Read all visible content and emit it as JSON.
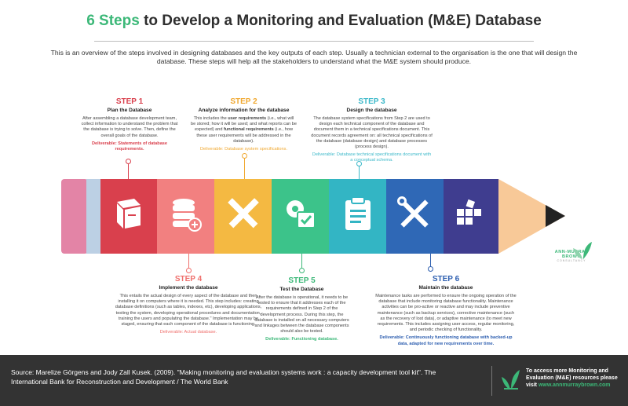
{
  "header": {
    "title_accent": "6 Steps",
    "title_rest": " to Develop a Monitoring and Evaluation (M&E) Database",
    "intro": "This is an overview of the steps involved in designing databases and the key outputs of each step. Usually a technician external to the organisation is the one that will design the database.  These steps will help all the stakeholders to understand what the M&E system should produce."
  },
  "colors": {
    "step1": "#d9404d",
    "step2": "#f0a830",
    "step3": "#3bb8c9",
    "step4": "#ef6f6c",
    "step5": "#3cb878",
    "step6": "#2e5fb0",
    "pencil_wood": "#f8c998",
    "eraser": "#e384a6",
    "ferrule": "#bcd0e4",
    "seg1": "#d9404d",
    "seg2": "#f28080",
    "seg3": "#f4b942",
    "seg4": "#3cc38a",
    "seg5": "#33b5c4",
    "seg6": "#2f68b6",
    "seg7": "#3f3d8f"
  },
  "steps": {
    "s1": {
      "label": "STEP 1",
      "name": "Plan the Database",
      "body": "After assembling a database development team, collect information to understand the problem that the database is trying to solve. Then, define the overall goals of the database.",
      "deliverable": "Deliverable: Statements of database requirements."
    },
    "s2": {
      "label": "STEP 2",
      "name": "Analyze information for the database",
      "body_a": "This includes the ",
      "body_b": "user requirements",
      "body_c": " (i.e., what will be stored; how it will be used; and what reports can be expected) and ",
      "body_d": "functional requirements",
      "body_e": " (i.e., how these user requirements will be addressed in the database).",
      "deliverable": "Deliverable: Database system specifications."
    },
    "s3": {
      "label": "STEP 3",
      "name": "Design the database",
      "body": "The database system specifications from Step 2 are used to design each technical component of the database and document them in a technical specifications document. This document records agreement on: all technical specifications of the database (database design) and database processes (process design).",
      "deliverable": "Deliverable: Database technical specifications document with a conceptual schema."
    },
    "s4": {
      "label": "STEP 4",
      "name": "Implement the database",
      "body": "This entails the actual design of every aspect of the database and then installing it on computers where it is needed. This step includes: creating database definitions (such as tables, indexes, etc), developing applications, testing the system, developing operational procedures and documentation, training the users and populating the database.\" Implementation may be staged, ensuring that each component of the database is functioning.",
      "deliverable": "Deliverable: Actual database."
    },
    "s5": {
      "label": "STEP 5",
      "name": "Test the Database",
      "body": "After the database is operational, it needs to be tested to ensure that it addresses each of the requirements defined in Step 2 of the development process. During this step, the database is installed on all necessary computers and linkages between the database components should also be tested.",
      "deliverable": "Deliverable: Functioning database."
    },
    "s6": {
      "label": "STEP 6",
      "name": "Maintain the database",
      "body": "Maintenance tasks are performed to ensure the ongoing operation of the database that include monitoring database functionality. Maintenance activities can be pro-active or reactive and may include preventive maintenance (such as backup services), corrective maintenance (such as the recovery of lost data), or adaptive maintenance (to meet new requirements. This includes assigning user access, regular monitoring, and periodic checking of functionality.",
      "deliverable": "Deliverable: Continuously functioning database with backed-up data, adapted for new requirements over time."
    }
  },
  "icons": [
    "book-icon",
    "database-add-icon",
    "pencil-ruler-icon",
    "gear-check-icon",
    "clipboard-icon",
    "wrench-screwdriver-icon",
    "blocks-icon"
  ],
  "logo": {
    "line1": "ANN-MURRAY",
    "line2": "BROWN",
    "line3": "CONSULTANCY"
  },
  "footer": {
    "source": "Source: Marelize Görgens and Jody Zall Kusek. (2009). \"Making monitoring and evaluation systems work : a capacity development tool kit\". The International Bank for Reconstruction and Development / The World Bank",
    "cta": "To access more Monitoring and Evaluation (M&E) resources please visit ",
    "cta_link": "www.annmurraybrown.com"
  }
}
